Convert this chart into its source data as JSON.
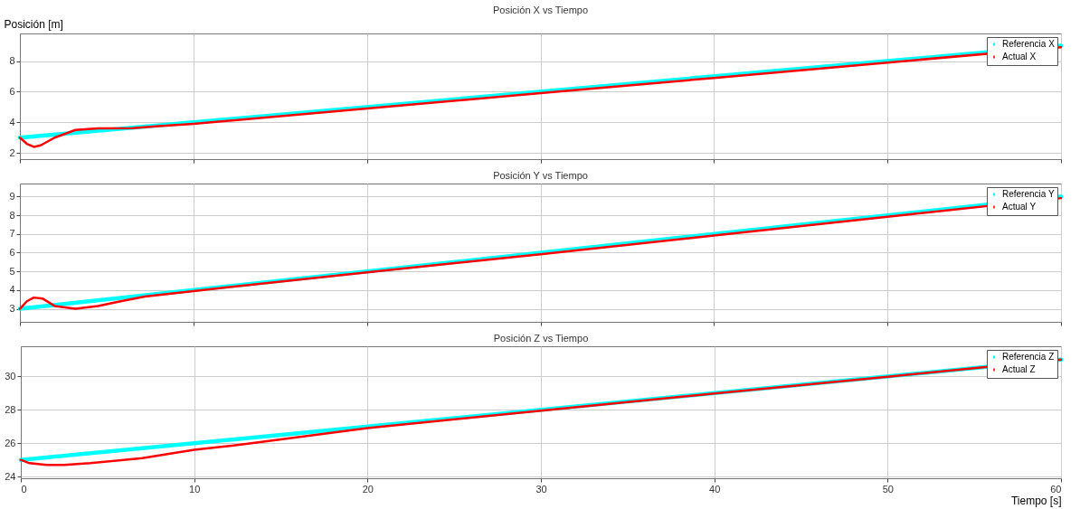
{
  "chart_data": [
    {
      "type": "line",
      "title": "Posición X vs Tiempo",
      "ylabel": "Posición [m]",
      "xlim": [
        0,
        60
      ],
      "xticks": [
        0,
        10,
        20,
        30,
        40,
        50,
        60
      ],
      "ylim": [
        1.6,
        9.8
      ],
      "yticks": [
        2,
        4,
        6,
        8
      ],
      "grid": true,
      "legend": "top right",
      "tick_labels": "y",
      "series": [
        {
          "name": "Referencia X",
          "color": "#00ffff",
          "x": [
            0,
            60
          ],
          "values": [
            3,
            9
          ]
        },
        {
          "name": "Actual X",
          "color": "#ff0000",
          "x": [
            0,
            0.4,
            0.8,
            1.2,
            2,
            3.2,
            4.5,
            6.5,
            8,
            10,
            20,
            30,
            40,
            50,
            60
          ],
          "values": [
            3,
            2.6,
            2.4,
            2.5,
            3.0,
            3.5,
            3.6,
            3.62,
            3.75,
            3.9,
            4.9,
            5.9,
            6.9,
            7.9,
            8.9
          ]
        }
      ]
    },
    {
      "type": "line",
      "title": "Posición Y vs Tiempo",
      "xlim": [
        0,
        60
      ],
      "xticks": [
        0,
        10,
        20,
        30,
        40,
        50,
        60
      ],
      "ylim": [
        2.3,
        9.7
      ],
      "yticks": [
        3,
        4,
        5,
        6,
        7,
        8,
        9
      ],
      "grid": true,
      "legend": "top right",
      "tick_labels": "y",
      "series": [
        {
          "name": "Referencia Y",
          "color": "#00ffff",
          "x": [
            0,
            60
          ],
          "values": [
            3,
            9
          ]
        },
        {
          "name": "Actual Y",
          "color": "#ff0000",
          "x": [
            0,
            0.4,
            0.8,
            1.3,
            2,
            3.2,
            4.5,
            5.8,
            7.2,
            8.6,
            10,
            20,
            30,
            40,
            50,
            60
          ],
          "values": [
            3,
            3.4,
            3.6,
            3.55,
            3.15,
            3.0,
            3.15,
            3.4,
            3.65,
            3.8,
            3.95,
            4.95,
            5.92,
            6.92,
            7.92,
            8.92
          ]
        }
      ]
    },
    {
      "type": "line",
      "title": "Posición Z vs Tiempo",
      "xlabel": "Tiempo [s]",
      "xlim": [
        0,
        60
      ],
      "xticks": [
        0,
        10,
        20,
        30,
        40,
        50,
        60
      ],
      "ylim": [
        23.9,
        31.8
      ],
      "yticks": [
        24,
        26,
        28,
        30
      ],
      "grid": true,
      "legend": "top right",
      "series": [
        {
          "name": "Referencia Z",
          "color": "#00ffff",
          "x": [
            0,
            60
          ],
          "values": [
            25,
            31
          ]
        },
        {
          "name": "Actual Z",
          "color": "#ff0000",
          "x": [
            0,
            0.5,
            1.5,
            2.5,
            4,
            7,
            10,
            13,
            20,
            30,
            40,
            50,
            60
          ],
          "values": [
            25,
            24.8,
            24.7,
            24.7,
            24.8,
            25.1,
            25.6,
            25.95,
            26.9,
            27.95,
            28.97,
            29.98,
            31
          ]
        }
      ]
    }
  ]
}
